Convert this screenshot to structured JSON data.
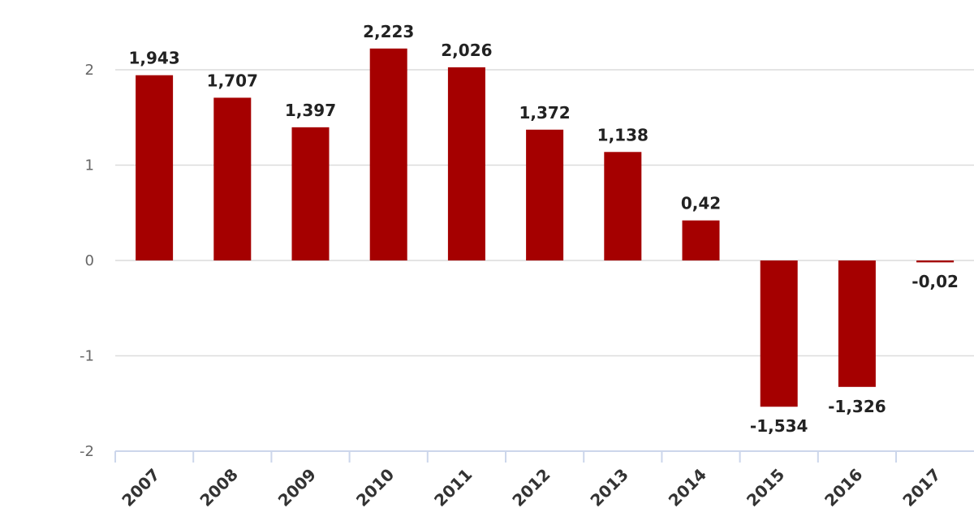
{
  "chart_data": {
    "type": "bar",
    "categories": [
      "2007",
      "2008",
      "2009",
      "2010",
      "2011",
      "2012",
      "2013",
      "2014",
      "2015",
      "2016",
      "2017"
    ],
    "values": [
      1.943,
      1.707,
      1.397,
      2.223,
      2.026,
      1.372,
      1.138,
      0.42,
      -1.534,
      -1.326,
      -0.02
    ],
    "value_labels": [
      "1,943",
      "1,707",
      "1,397",
      "2,223",
      "2,026",
      "1,372",
      "1,138",
      "0,42",
      "-1,534",
      "-1,326",
      "-0,02"
    ],
    "y_ticks": [
      2,
      1,
      0,
      -1,
      -2
    ],
    "y_tick_labels": [
      "2",
      "1",
      "0",
      "-1",
      "-2"
    ],
    "ylim": [
      -2,
      2.5
    ],
    "title": "",
    "xlabel": "",
    "ylabel": "",
    "grid": true,
    "legend": "none",
    "bar_color": "#a50000"
  }
}
